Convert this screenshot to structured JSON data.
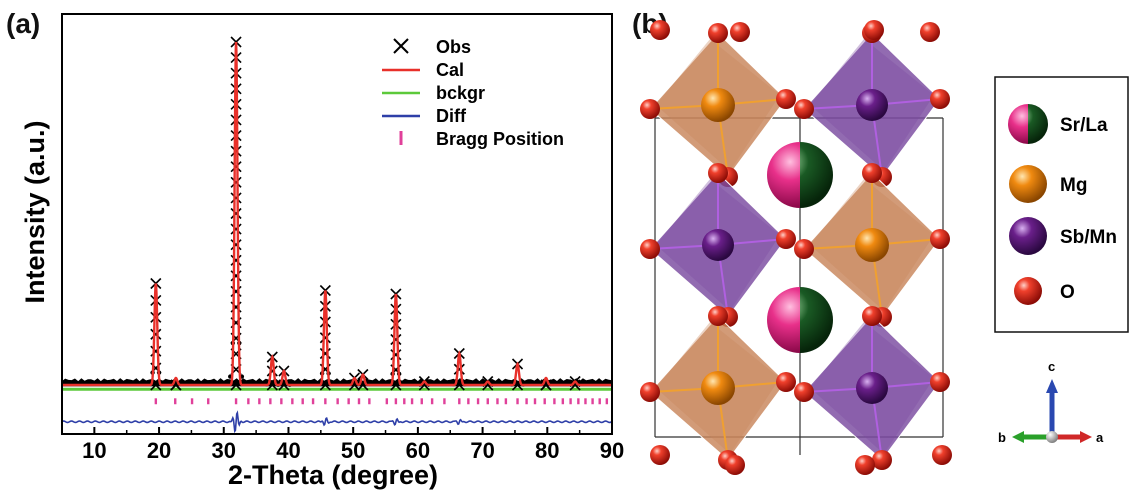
{
  "panel_a_label": "(a)",
  "panel_b_label": "(b)",
  "chart_data": {
    "type": "line",
    "xlabel": "2-Theta (degree)",
    "ylabel": "Intensity (a.u.)",
    "xlim": [
      5,
      90
    ],
    "ylim": [
      -0.12,
      1.08
    ],
    "xticks": [
      10,
      20,
      30,
      40,
      50,
      60,
      70,
      80,
      90
    ],
    "grid": false,
    "legend_position": "top-right",
    "legend": [
      {
        "label": "Obs",
        "marker": "x",
        "color": "#000000"
      },
      {
        "label": "Cal",
        "marker": "line",
        "color": "#e8302a"
      },
      {
        "label": "bckgr",
        "marker": "line",
        "color": "#5cc93a"
      },
      {
        "label": "Diff",
        "marker": "line",
        "color": "#2e3fa8"
      },
      {
        "label": "Bragg Position",
        "marker": "tick",
        "color": "#e0409a"
      }
    ],
    "peaks": [
      {
        "x": 19.5,
        "y": 0.31
      },
      {
        "x": 22.6,
        "y": 0.02
      },
      {
        "x": 31.9,
        "y": 1.0
      },
      {
        "x": 37.5,
        "y": 0.1
      },
      {
        "x": 39.3,
        "y": 0.06
      },
      {
        "x": 45.7,
        "y": 0.29
      },
      {
        "x": 50.2,
        "y": 0.04
      },
      {
        "x": 51.5,
        "y": 0.05
      },
      {
        "x": 56.6,
        "y": 0.28
      },
      {
        "x": 61.0,
        "y": 0.03
      },
      {
        "x": 66.4,
        "y": 0.11
      },
      {
        "x": 70.8,
        "y": 0.03
      },
      {
        "x": 75.4,
        "y": 0.08
      },
      {
        "x": 79.8,
        "y": 0.02
      },
      {
        "x": 84.3,
        "y": 0.03
      }
    ],
    "background_level": 0.02,
    "bragg_positions": [
      19.5,
      22.5,
      25.1,
      27.6,
      31.9,
      33.8,
      35.5,
      37.2,
      38.9,
      40.6,
      42.2,
      43.8,
      45.7,
      47.6,
      49.3,
      50.9,
      52.5,
      55.2,
      56.6,
      57.9,
      59.1,
      60.6,
      62.2,
      64.1,
      66.4,
      67.8,
      69.3,
      70.8,
      72.3,
      73.6,
      75.4,
      76.8,
      78.1,
      79.6,
      81.1,
      82.4,
      83.6,
      84.8,
      85.9,
      87.0,
      88.1,
      89.2
    ],
    "diff_offset": -0.085,
    "diff_features": [
      {
        "x": 31.9,
        "amplitude": 0.03
      },
      {
        "x": 45.7,
        "amplitude": 0.01
      },
      {
        "x": 56.6,
        "amplitude": 0.008
      },
      {
        "x": 66.4,
        "amplitude": 0.006
      }
    ]
  },
  "structure": {
    "legend": [
      {
        "label": "Sr/La",
        "icon": "split-sphere-icon",
        "colors": [
          "#e8308a",
          "#1a5a24"
        ]
      },
      {
        "label": "Mg",
        "icon": "sphere-icon",
        "colors": [
          "#f08a10"
        ]
      },
      {
        "label": "Sb/Mn",
        "icon": "sphere-icon",
        "colors": [
          "#6a1f8a"
        ]
      },
      {
        "label": "O",
        "icon": "sphere-icon",
        "colors": [
          "#e52018"
        ]
      }
    ],
    "axes": {
      "c": "c",
      "b": "b",
      "a": "a"
    },
    "colors": {
      "mg_octahedron": "#c8855a",
      "sb_octahedron": "#7a4aa0",
      "axis_c": "#2a48b0",
      "axis_b": "#2aa02a",
      "axis_a": "#d02828"
    }
  }
}
